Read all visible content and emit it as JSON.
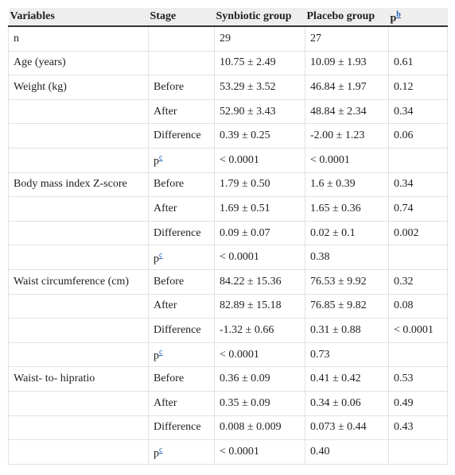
{
  "table": {
    "header": [
      "Variables",
      "Stage",
      "Synbiotic group",
      "Placebo group",
      {
        "text": "p",
        "sup": "b"
      }
    ],
    "rows": [
      [
        "n",
        null,
        "29",
        "27",
        null
      ],
      [
        "Age (years)",
        null,
        "10.75 ± 2.49",
        "10.09 ± 1.93",
        "0.61"
      ],
      [
        "Weight (kg)",
        "Before",
        "53.29 ± 3.52",
        "46.84 ± 1.97",
        "0.12"
      ],
      [
        null,
        "After",
        "52.90 ± 3.43",
        "48.84 ± 2.34",
        "0.34"
      ],
      [
        null,
        "Difference",
        "0.39 ± 0.25",
        "-2.00 ± 1.23",
        "0.06"
      ],
      [
        null,
        {
          "text": "p",
          "sup": "c"
        },
        "< 0.0001",
        "< 0.0001",
        null
      ],
      [
        "Body mass index Z-score",
        "Before",
        "1.79 ± 0.50",
        "1.6 ± 0.39",
        "0.34"
      ],
      [
        null,
        "After",
        "1.69 ± 0.51",
        "1.65 ± 0.36",
        "0.74"
      ],
      [
        null,
        "Difference",
        "0.09 ± 0.07",
        "0.02 ± 0.1",
        "0.002"
      ],
      [
        null,
        {
          "text": "p",
          "sup": "c"
        },
        "< 0.0001",
        "0.38",
        null
      ],
      [
        "Waist circumference (cm)",
        "Before",
        "84.22 ± 15.36",
        "76.53 ± 9.92",
        "0.32"
      ],
      [
        null,
        "After",
        "82.89 ± 15.18",
        "76.85 ± 9.82",
        "0.08"
      ],
      [
        null,
        "Difference",
        "-1.32 ± 0.66",
        "0.31 ± 0.88",
        "< 0.0001"
      ],
      [
        null,
        {
          "text": "p",
          "sup": "c"
        },
        "< 0.0001",
        "0.73",
        null
      ],
      [
        "Waist- to- hipratio",
        "Before",
        "0.36 ± 0.09",
        "0.41 ± 0.42",
        "0.53"
      ],
      [
        null,
        "After",
        "0.35 ± 0.09",
        "0.34 ± 0.06",
        "0.49"
      ],
      [
        null,
        "Difference",
        "0.008 ± 0.009",
        "0.073 ± 0.44",
        "0.43"
      ],
      [
        null,
        {
          "text": "p",
          "sup": "c"
        },
        "< 0.0001",
        "0.40",
        null
      ]
    ]
  }
}
